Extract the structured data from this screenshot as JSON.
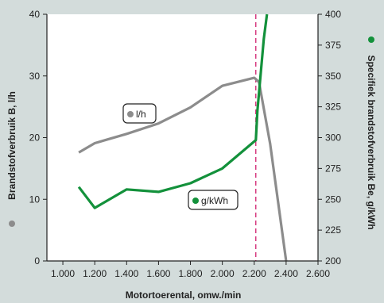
{
  "colors": {
    "background": "#d3dcdb",
    "plot_background": "#ffffff",
    "series_grey": "#8c8c8c",
    "series_green": "#13913b",
    "marker_line": "#d0216f",
    "axis": "#222222"
  },
  "chart_data": {
    "type": "line",
    "xlabel": "Motortoerental, omw./min",
    "ylabel_left": "Brandstofverbruik B, l/h",
    "ylabel_right": "Specifiek brandstofverbruik Be, g/kWh",
    "xlim": [
      900,
      2600
    ],
    "ylim_left": [
      0,
      40
    ],
    "ylim_right": [
      200,
      400
    ],
    "x_ticks": [
      1000,
      1200,
      1400,
      1600,
      1800,
      2000,
      2200,
      2400,
      2600
    ],
    "x_tick_labels": [
      "1.000",
      "1.200",
      "1.400",
      "1.600",
      "1.800",
      "2.000",
      "2.200",
      "2.400",
      "2.600"
    ],
    "y_left_ticks": [
      0,
      10,
      20,
      30,
      40
    ],
    "y_left_tick_labels": [
      "0",
      "10",
      "20",
      "30",
      "40"
    ],
    "y_right_ticks": [
      200,
      225,
      250,
      275,
      300,
      325,
      350,
      375,
      400
    ],
    "y_right_tick_labels": [
      "200",
      "225",
      "250",
      "275",
      "300",
      "325",
      "350",
      "375",
      "400"
    ],
    "vertical_marker_x": 2210,
    "grid": false,
    "series": [
      {
        "name": "l/h",
        "axis": "left",
        "color": "#8c8c8c",
        "x": [
          1100,
          1200,
          1400,
          1600,
          1800,
          2000,
          2200,
          2230,
          2300,
          2400
        ],
        "y": [
          17.6,
          19.1,
          20.6,
          22.3,
          24.9,
          28.4,
          29.7,
          29.0,
          19.0,
          0
        ]
      },
      {
        "name": "g/kWh",
        "axis": "right",
        "color": "#13913b",
        "x": [
          1100,
          1200,
          1400,
          1600,
          1800,
          2000,
          2210,
          2220,
          2260,
          2280
        ],
        "y": [
          260,
          243,
          258,
          256,
          263,
          275,
          298,
          322,
          380,
          400
        ]
      }
    ],
    "legend": [
      {
        "label": "l/h",
        "placement": "upper-left-in-plot",
        "color": "#8c8c8c"
      },
      {
        "label": "g/kWh",
        "placement": "center-in-plot",
        "color": "#13913b"
      }
    ]
  }
}
